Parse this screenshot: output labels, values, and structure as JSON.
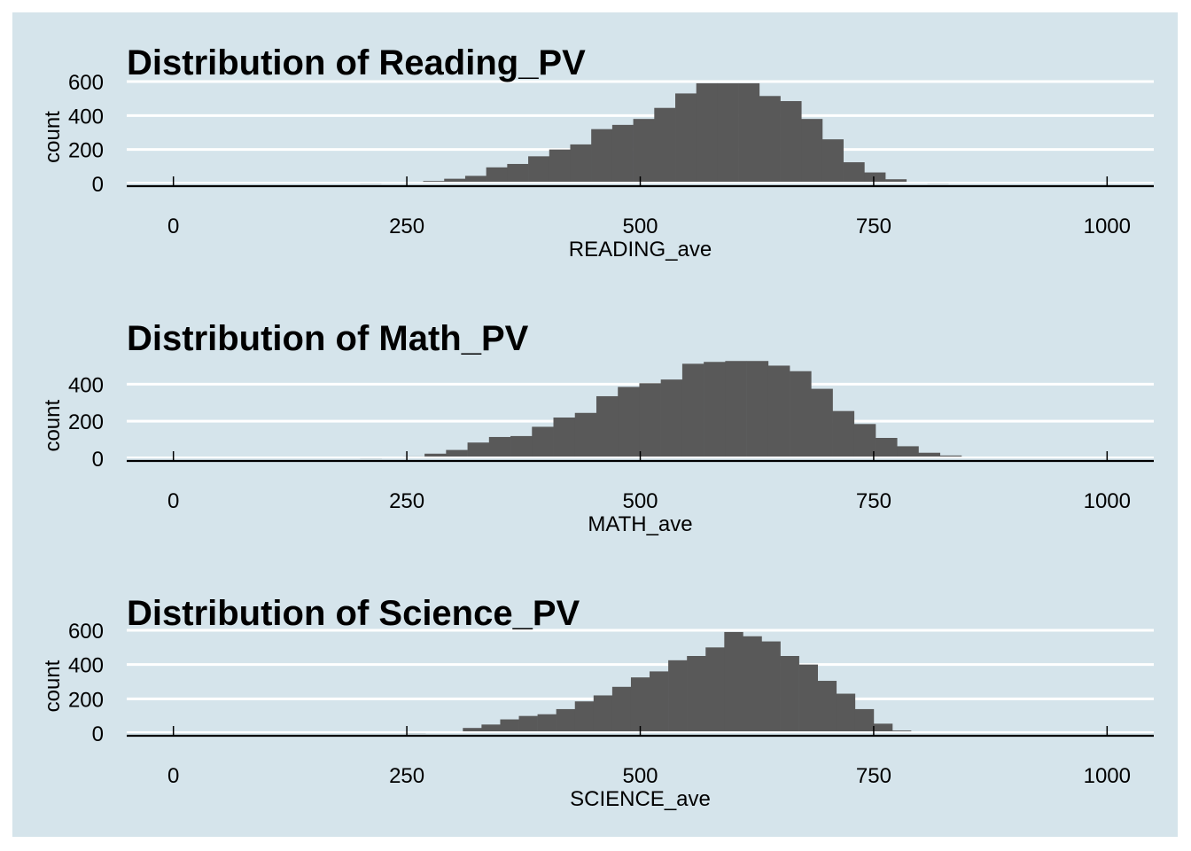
{
  "chart_data": [
    {
      "type": "bar",
      "title": "Distribution of Reading_PV",
      "xlabel": "READING_ave",
      "ylabel": "count",
      "xlim": [
        -50,
        1050
      ],
      "ylim": [
        0,
        600
      ],
      "x_ticks": [
        0,
        250,
        500,
        750,
        1000
      ],
      "y_ticks": [
        0,
        200,
        400,
        600
      ],
      "bin_start": 200,
      "bin_width": 22.5,
      "values": [
        2,
        5,
        8,
        15,
        28,
        45,
        95,
        115,
        160,
        200,
        230,
        320,
        345,
        380,
        445,
        530,
        590,
        590,
        590,
        515,
        485,
        380,
        260,
        125,
        65,
        25,
        6,
        2
      ],
      "grid": true
    },
    {
      "type": "bar",
      "title": "Distribution of Math_PV",
      "xlabel": "MATH_ave",
      "ylabel": "count",
      "xlim": [
        -50,
        1050
      ],
      "ylim": [
        0,
        550
      ],
      "x_ticks": [
        0,
        250,
        500,
        750,
        1000
      ],
      "y_ticks": [
        0,
        200,
        400
      ],
      "bin_start": 200,
      "bin_width": 23,
      "values": [
        2,
        5,
        10,
        25,
        45,
        85,
        115,
        120,
        170,
        220,
        245,
        335,
        385,
        405,
        425,
        510,
        520,
        525,
        525,
        500,
        470,
        375,
        255,
        185,
        110,
        65,
        30,
        15,
        8,
        4
      ],
      "grid": true
    },
    {
      "type": "bar",
      "title": "Distribution of Science_PV",
      "xlabel": "SCIENCE_ave",
      "ylabel": "count",
      "xlim": [
        -50,
        1050
      ],
      "ylim": [
        0,
        600
      ],
      "x_ticks": [
        0,
        250,
        500,
        750,
        1000
      ],
      "y_ticks": [
        0,
        200,
        400,
        600
      ],
      "bin_start": 250,
      "bin_width": 20,
      "values": [
        2,
        3,
        8,
        30,
        50,
        80,
        100,
        110,
        140,
        185,
        220,
        270,
        325,
        360,
        425,
        450,
        500,
        590,
        565,
        535,
        450,
        400,
        305,
        230,
        140,
        55,
        15,
        3
      ],
      "grid": true
    }
  ]
}
